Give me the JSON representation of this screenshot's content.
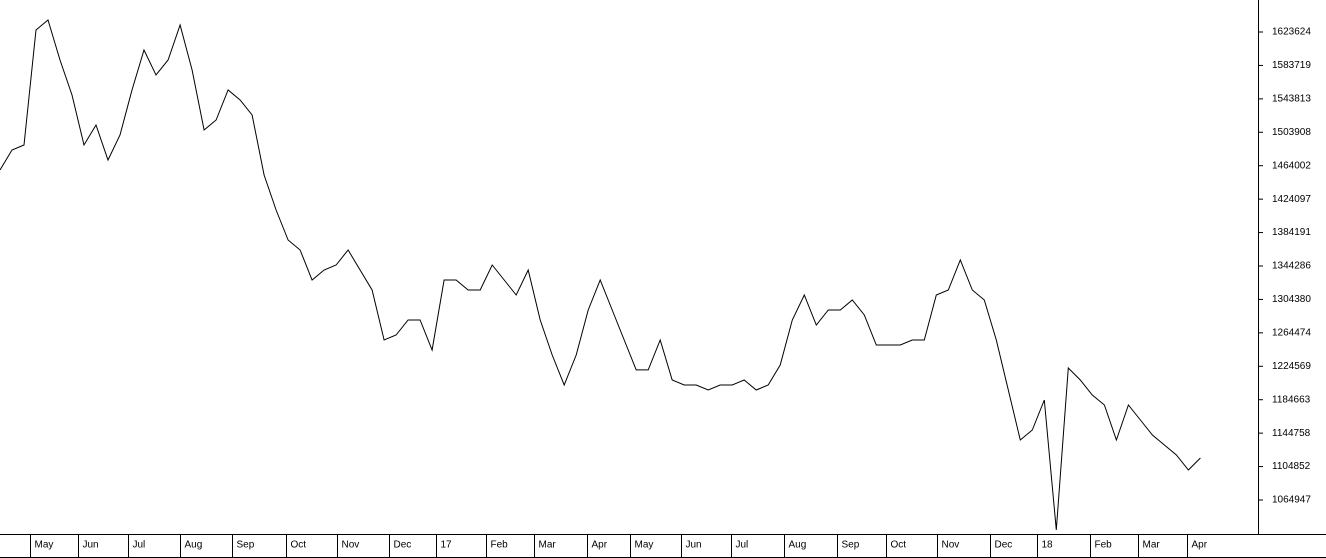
{
  "chart_data": {
    "type": "line",
    "series": [
      {
        "color": "#000000",
        "values": [
          1458900,
          1482800,
          1488700,
          1626000,
          1637900,
          1590200,
          1548400,
          1488700,
          1512600,
          1470800,
          1500700,
          1554400,
          1602100,
          1572300,
          1590200,
          1632000,
          1578300,
          1506600,
          1518600,
          1554400,
          1542500,
          1524500,
          1452900,
          1411100,
          1375300,
          1363400,
          1327600,
          1339500,
          1345500,
          1363400,
          1339500,
          1315600,
          1256000,
          1261900,
          1279800,
          1279800,
          1244000,
          1327600,
          1327600,
          1315600,
          1315600,
          1345500,
          1327600,
          1309700,
          1339500,
          1279800,
          1238100,
          1202200,
          1238100,
          1291800,
          1327600,
          1291800,
          1256000,
          1220200,
          1220200,
          1256000,
          1208200,
          1202200,
          1202200,
          1196300,
          1202200,
          1202200,
          1208200,
          1196300,
          1202200,
          1226100,
          1279800,
          1309700,
          1273900,
          1291800,
          1291800,
          1303700,
          1285800,
          1250000,
          1250000,
          1250000,
          1256000,
          1256000,
          1309700,
          1315600,
          1351500,
          1315600,
          1303700,
          1256000,
          1196300,
          1136600,
          1148500,
          1184300,
          1029200,
          1222500,
          1208200,
          1190300,
          1178400,
          1136600,
          1178400,
          1160500,
          1142600,
          1130600,
          1118700,
          1100800,
          1115100
        ]
      }
    ],
    "ylim": [
      1024359,
      1661824
    ],
    "yticks": [
      1623624,
      1583719,
      1543813,
      1503908,
      1464002,
      1424097,
      1384191,
      1344286,
      1304380,
      1264474,
      1224569,
      1184663,
      1144758,
      1104852,
      1064947
    ],
    "xlim": [
      0,
      104.8
    ],
    "xticks": [
      {
        "value": 2.5,
        "label": "May"
      },
      {
        "value": 6.5,
        "label": "Jun"
      },
      {
        "value": 10.7,
        "label": "Jul"
      },
      {
        "value": 15,
        "label": "Aug"
      },
      {
        "value": 19.3,
        "label": "Sep"
      },
      {
        "value": 23.8,
        "label": "Oct"
      },
      {
        "value": 28.1,
        "label": "Nov"
      },
      {
        "value": 32.4,
        "label": "Dec"
      },
      {
        "value": 36.3,
        "label": "17"
      },
      {
        "value": 40.5,
        "label": "Feb"
      },
      {
        "value": 44.5,
        "label": "Mar"
      },
      {
        "value": 48.9,
        "label": "Apr"
      },
      {
        "value": 52.5,
        "label": "May"
      },
      {
        "value": 56.7,
        "label": "Jun"
      },
      {
        "value": 60.9,
        "label": "Jul"
      },
      {
        "value": 65.3,
        "label": "Aug"
      },
      {
        "value": 69.7,
        "label": "Sep"
      },
      {
        "value": 73.8,
        "label": "Oct"
      },
      {
        "value": 78.1,
        "label": "Nov"
      },
      {
        "value": 82.5,
        "label": "Dec"
      },
      {
        "value": 86.4,
        "label": "18"
      },
      {
        "value": 90.8,
        "label": "Feb"
      },
      {
        "value": 94.8,
        "label": "Mar"
      },
      {
        "value": 98.9,
        "label": "Apr"
      }
    ]
  }
}
